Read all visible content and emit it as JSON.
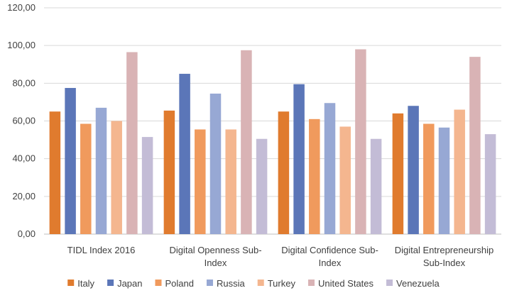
{
  "chart_data": {
    "type": "bar",
    "title": "",
    "xlabel": "",
    "ylabel": "",
    "ylim": [
      0,
      120
    ],
    "ytick_step": 20,
    "ytick_labels": [
      "0,00",
      "20,00",
      "40,00",
      "60,00",
      "80,00",
      "100,00",
      "120,00"
    ],
    "grid": true,
    "legend_position": "bottom",
    "categories": [
      [
        "TIDL Index 2016"
      ],
      [
        "Digital Openness Sub-",
        "Index"
      ],
      [
        "Digital Confidence Sub-",
        "Index"
      ],
      [
        "Digital Entrepreneurship",
        "Sub-Index"
      ]
    ],
    "series": [
      {
        "name": "Italy",
        "color": "#e07b2e",
        "values": [
          65,
          65.5,
          65,
          64
        ]
      },
      {
        "name": "Japan",
        "color": "#5b76b8",
        "values": [
          77.5,
          85,
          79.5,
          68
        ]
      },
      {
        "name": "Poland",
        "color": "#f09a5d",
        "values": [
          58.5,
          55.5,
          61,
          58.5
        ]
      },
      {
        "name": "Russia",
        "color": "#97a8d4",
        "values": [
          67,
          74.5,
          69.5,
          56.5
        ]
      },
      {
        "name": "Turkey",
        "color": "#f4b68f",
        "values": [
          60,
          55.5,
          57,
          66
        ]
      },
      {
        "name": "United States",
        "color": "#d9b3b5",
        "values": [
          96.5,
          97.5,
          98,
          94
        ]
      },
      {
        "name": "Venezuela",
        "color": "#c3bcd6",
        "values": [
          51.5,
          50.5,
          50.5,
          53
        ]
      }
    ]
  }
}
